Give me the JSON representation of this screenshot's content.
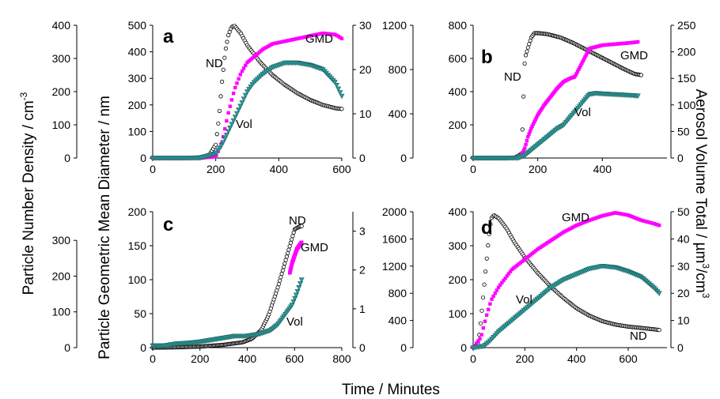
{
  "figure": {
    "y_left_label_html": "Particle Number Density / cm",
    "y_left_label_sup": "-3",
    "y_mid_label": "Particle Geometric Mean Diameter / nm",
    "y_right_label_pre": "Aerosol Volume Total / µm",
    "y_right_label_sup1": "3",
    "y_right_label_mid": "/cm",
    "y_right_label_sup2": "3",
    "x_label": "Time / Minutes"
  },
  "colors": {
    "nd": "#000000",
    "gmd": "#ff00ff",
    "vol": "#2a9d9d",
    "vol_stroke": "#1f5f5f"
  },
  "chart_data": [
    {
      "panel": "a",
      "type": "scatter",
      "xlim": [
        0,
        600
      ],
      "x_ticks": [
        0,
        200,
        400,
        600
      ],
      "nd_axis": {
        "ylim": [
          0,
          400
        ],
        "ticks": [
          0,
          100,
          200,
          300,
          400
        ]
      },
      "gmd_axis": {
        "ylim": [
          0,
          500
        ],
        "ticks": [
          0,
          100,
          200,
          300,
          400,
          500
        ]
      },
      "vol_axis": {
        "ylim": [
          0,
          30
        ],
        "ticks": [
          0,
          10,
          20,
          30
        ]
      },
      "annotations": {
        "nd": "ND",
        "gmd": "GMD",
        "vol": "Vol"
      },
      "series": [
        {
          "name": "ND",
          "axis": "nd",
          "x": [
            0,
            100,
            150,
            180,
            200,
            210,
            220,
            230,
            240,
            250,
            260,
            280,
            300,
            340,
            380,
            420,
            460,
            500,
            540,
            580,
            600
          ],
          "y": [
            0,
            0,
            2,
            10,
            40,
            120,
            230,
            320,
            370,
            395,
            398,
            375,
            340,
            290,
            250,
            220,
            195,
            175,
            160,
            150,
            148
          ]
        },
        {
          "name": "GMD",
          "axis": "gmd",
          "x": [
            0,
            150,
            200,
            220,
            240,
            260,
            280,
            300,
            320,
            350,
            380,
            420,
            460,
            500,
            540,
            580,
            600
          ],
          "y": [
            0,
            0,
            5,
            60,
            170,
            260,
            320,
            360,
            380,
            410,
            430,
            440,
            450,
            460,
            470,
            465,
            450
          ]
        },
        {
          "name": "Vol",
          "axis": "vol",
          "x": [
            0,
            150,
            200,
            220,
            240,
            260,
            280,
            300,
            320,
            350,
            380,
            420,
            460,
            500,
            540,
            580,
            600
          ],
          "y": [
            0,
            0,
            1,
            3,
            6,
            9,
            12,
            15,
            17,
            19,
            20.5,
            21.5,
            21.5,
            21,
            20,
            17,
            14
          ]
        }
      ]
    },
    {
      "panel": "b",
      "type": "scatter",
      "xlim": [
        0,
        600
      ],
      "x_ticks": [
        0,
        200,
        400
      ],
      "nd_axis": {
        "ylim": [
          0,
          1200
        ],
        "ticks": [
          0,
          400,
          800,
          1200
        ]
      },
      "gmd_axis": {
        "ylim": [
          0,
          800
        ],
        "ticks": [
          0,
          200,
          400,
          600,
          800
        ]
      },
      "vol_axis": {
        "ylim": [
          0,
          250
        ],
        "ticks": [
          0,
          50,
          100,
          150,
          200,
          250
        ]
      },
      "annotations": {
        "nd": "ND",
        "gmd": "GMD",
        "vol": "Vol"
      },
      "series": [
        {
          "name": "ND",
          "axis": "nd",
          "x": [
            0,
            100,
            130,
            140,
            150,
            160,
            170,
            180,
            190,
            200,
            230,
            270,
            310,
            350,
            390,
            430,
            470,
            500,
            520
          ],
          "y": [
            0,
            0,
            5,
            20,
            40,
            900,
            1000,
            1090,
            1130,
            1130,
            1120,
            1090,
            1040,
            980,
            920,
            860,
            800,
            760,
            750
          ]
        },
        {
          "name": "GMD",
          "axis": "gmd",
          "x": [
            150,
            160,
            170,
            180,
            190,
            200,
            220,
            240,
            260,
            280,
            300,
            315,
            360,
            380,
            400,
            430,
            460,
            490,
            510
          ],
          "y": [
            20,
            60,
            130,
            180,
            220,
            260,
            320,
            370,
            420,
            460,
            480,
            490,
            660,
            670,
            680,
            685,
            690,
            695,
            700
          ]
        },
        {
          "name": "Vol",
          "axis": "vol",
          "x": [
            0,
            140,
            160,
            180,
            200,
            220,
            240,
            260,
            280,
            360,
            380,
            400,
            430,
            460,
            490,
            510
          ],
          "y": [
            0,
            0,
            5,
            15,
            25,
            35,
            45,
            55,
            62,
            120,
            122,
            121,
            120,
            119,
            118,
            117
          ]
        }
      ]
    },
    {
      "panel": "c",
      "type": "scatter",
      "xlim": [
        0,
        800
      ],
      "x_ticks": [
        0,
        200,
        400,
        600,
        800
      ],
      "nd_axis": {
        "ylim": [
          0,
          380
        ],
        "ticks": [
          0,
          100,
          200,
          300
        ]
      },
      "gmd_axis": {
        "ylim": [
          0,
          200
        ],
        "ticks": [
          0,
          50,
          100,
          150,
          200
        ]
      },
      "vol_axis": {
        "ylim": [
          0,
          3.5
        ],
        "ticks": [
          0,
          1,
          2,
          3
        ]
      },
      "annotations": {
        "nd": "ND",
        "gmd": "GMD",
        "vol": "Vol"
      },
      "series": [
        {
          "name": "ND",
          "axis": "nd",
          "x": [
            0,
            100,
            200,
            300,
            380,
            420,
            460,
            490,
            510,
            530,
            600,
            610,
            620,
            630
          ],
          "y": [
            0,
            1,
            3,
            8,
            15,
            25,
            50,
            90,
            130,
            170,
            330,
            335,
            338,
            340
          ]
        },
        {
          "name": "GMD",
          "axis": "gmd",
          "x": [
            580,
            590,
            600,
            610,
            620,
            630
          ],
          "y": [
            110,
            125,
            135,
            145,
            150,
            155
          ]
        },
        {
          "name": "Vol",
          "axis": "vol",
          "x": [
            0,
            50,
            100,
            150,
            200,
            250,
            300,
            350,
            400,
            450,
            500,
            530,
            560,
            590,
            610,
            630
          ],
          "y": [
            0.05,
            0.05,
            0.1,
            0.12,
            0.15,
            0.2,
            0.25,
            0.3,
            0.3,
            0.35,
            0.45,
            0.6,
            0.85,
            1.1,
            1.4,
            1.75
          ]
        }
      ]
    },
    {
      "panel": "d",
      "type": "scatter",
      "xlim": [
        0,
        750
      ],
      "x_ticks": [
        0,
        200,
        400,
        600
      ],
      "nd_axis": {
        "ylim": [
          0,
          2000
        ],
        "ticks": [
          0,
          400,
          800,
          1200,
          1600,
          2000
        ]
      },
      "gmd_axis": {
        "ylim": [
          0,
          400
        ],
        "ticks": [
          0,
          100,
          200,
          300,
          400
        ]
      },
      "vol_axis": {
        "ylim": [
          0,
          50
        ],
        "ticks": [
          0,
          10,
          20,
          30,
          40,
          50
        ]
      },
      "annotations": {
        "nd": "ND",
        "gmd": "GMD",
        "vol": "Vol"
      },
      "series": [
        {
          "name": "ND",
          "axis": "nd",
          "x": [
            0,
            20,
            30,
            40,
            50,
            60,
            70,
            80,
            100,
            130,
            160,
            200,
            250,
            300,
            350,
            400,
            450,
            500,
            550,
            600,
            650,
            700,
            720
          ],
          "y": [
            0,
            50,
            400,
            800,
            1200,
            1600,
            1900,
            1950,
            1900,
            1750,
            1550,
            1330,
            1100,
            900,
            730,
            580,
            470,
            390,
            340,
            310,
            290,
            270,
            260
          ]
        },
        {
          "name": "GMD",
          "axis": "gmd",
          "x": [
            0,
            30,
            50,
            70,
            100,
            150,
            200,
            250,
            300,
            350,
            400,
            450,
            500,
            550,
            600,
            650,
            700,
            720
          ],
          "y": [
            0,
            30,
            90,
            140,
            180,
            230,
            260,
            290,
            315,
            340,
            360,
            375,
            388,
            397,
            390,
            375,
            365,
            360
          ]
        },
        {
          "name": "Vol",
          "axis": "vol",
          "x": [
            0,
            40,
            60,
            100,
            150,
            200,
            250,
            300,
            350,
            400,
            450,
            500,
            550,
            600,
            650,
            700,
            720
          ],
          "y": [
            0,
            0.5,
            2,
            6,
            10,
            14,
            18,
            22,
            25,
            27,
            29,
            30,
            29.5,
            28,
            26,
            22,
            20
          ]
        }
      ]
    }
  ]
}
